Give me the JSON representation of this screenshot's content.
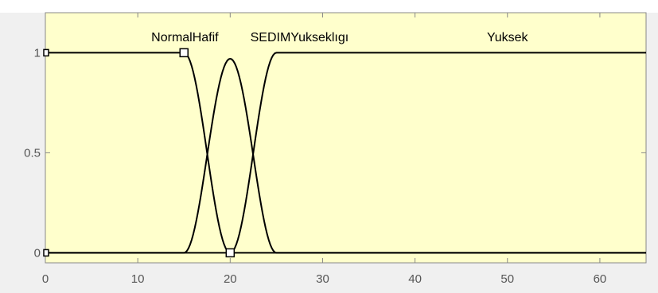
{
  "chart_data": {
    "type": "line",
    "x_ticks": [
      0,
      10,
      20,
      30,
      40,
      50,
      60
    ],
    "y_ticks": [
      0,
      0.5,
      1
    ],
    "y_tick_labels": [
      "0",
      "0.5",
      "1"
    ],
    "xlim": [
      0,
      65
    ],
    "ylim": [
      -0.05,
      1.2
    ],
    "grid": false,
    "series": [
      {
        "name": "NormalHafif",
        "x": [
          0,
          15,
          20,
          65
        ],
        "y": [
          1,
          1,
          0,
          0
        ],
        "shape": "z"
      },
      {
        "name": "SEDIMYukseklıgı",
        "x": [
          0,
          15,
          20,
          25,
          65
        ],
        "y": [
          0,
          0,
          0.97,
          0,
          0
        ],
        "shape": "bell"
      },
      {
        "name": "Yuksek",
        "x": [
          0,
          20,
          25,
          65
        ],
        "y": [
          0,
          0,
          1,
          1
        ],
        "shape": "s"
      }
    ],
    "label_positions_x": [
      15.1,
      27.5,
      50
    ],
    "label_y": 1.08,
    "handles": [
      {
        "x": 15,
        "y": 1
      },
      {
        "x": 20,
        "y": 0
      }
    ],
    "colors": {
      "plot_background": "#ffffcc",
      "figure_background": "#f0f0f0",
      "axis": "#888888",
      "line": "#000000"
    }
  }
}
